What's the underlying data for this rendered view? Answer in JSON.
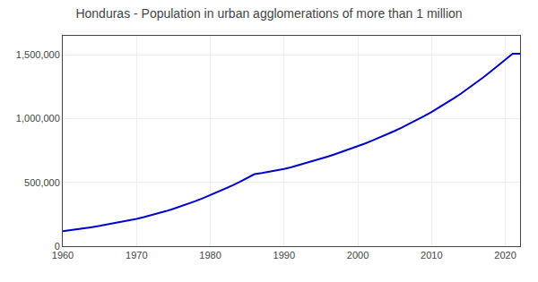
{
  "chart_data": {
    "type": "line",
    "title": "Honduras - Population in urban agglomerations of more than 1 million",
    "x": [
      1960,
      1961,
      1962,
      1963,
      1964,
      1965,
      1966,
      1967,
      1968,
      1969,
      1970,
      1971,
      1972,
      1973,
      1974,
      1975,
      1976,
      1977,
      1978,
      1979,
      1980,
      1981,
      1982,
      1983,
      1984,
      1985,
      1986,
      1987,
      1988,
      1989,
      1990,
      1991,
      1992,
      1993,
      1994,
      1995,
      1996,
      1997,
      1998,
      1999,
      2000,
      2001,
      2002,
      2003,
      2004,
      2005,
      2006,
      2007,
      2008,
      2009,
      2010,
      2011,
      2012,
      2013,
      2014,
      2015,
      2016,
      2017,
      2018,
      2019,
      2020,
      2021,
      2022
    ],
    "values": [
      118000,
      125000,
      133000,
      141000,
      150000,
      159000,
      169000,
      179000,
      190000,
      202000,
      214000,
      228000,
      242000,
      258000,
      275000,
      293000,
      312000,
      332000,
      354000,
      377000,
      401000,
      425000,
      450000,
      476000,
      504000,
      534000,
      565000,
      574000,
      584000,
      595000,
      606000,
      620000,
      636000,
      652000,
      669000,
      686000,
      704000,
      723000,
      743000,
      763000,
      784000,
      806000,
      829000,
      853000,
      878000,
      904000,
      931000,
      960000,
      990000,
      1021000,
      1053000,
      1087000,
      1122000,
      1159000,
      1197000,
      1238000,
      1280000,
      1323000,
      1369000,
      1416000,
      1465000,
      1510000,
      1510000
    ],
    "color": "#0000CC",
    "xlim": [
      1960,
      2022
    ],
    "ylim": [
      0,
      1650000
    ],
    "xticks": [
      1960,
      1970,
      1980,
      1990,
      2000,
      2010,
      2020
    ],
    "yticks": [
      0,
      {
        "value": 500000,
        "label": "500,000"
      },
      {
        "value": 1000000,
        "label": "1,000,000"
      },
      {
        "value": 1500000,
        "label": "1,500,000"
      }
    ],
    "grid": true
  }
}
